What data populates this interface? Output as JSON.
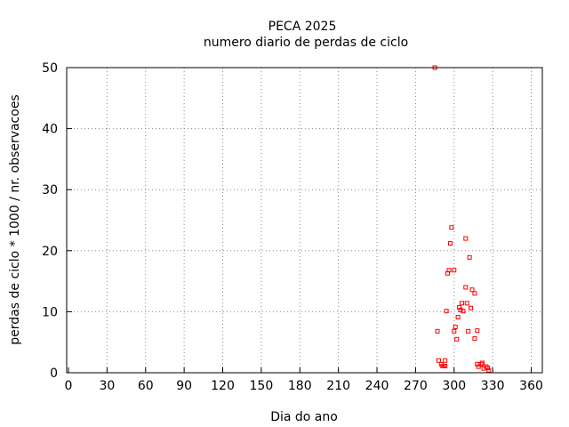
{
  "chart_data": {
    "type": "scatter",
    "title": "PECA 2025",
    "subtitle": "numero diario de perdas de ciclo",
    "xlabel": "Dia do ano",
    "ylabel": "perdas de ciclo * 1000 / nr. observacoes",
    "xlim": [
      0,
      370
    ],
    "ylim": [
      0,
      50
    ],
    "xticks": [
      0,
      30,
      60,
      90,
      120,
      150,
      180,
      210,
      240,
      270,
      300,
      330,
      360
    ],
    "yticks": [
      0,
      10,
      20,
      30,
      40,
      50
    ],
    "grid": true,
    "marker_color": "#ff0000",
    "points": [
      [
        285,
        50
      ],
      [
        298,
        23.8
      ],
      [
        309,
        22.0
      ],
      [
        297,
        21.2
      ],
      [
        312,
        18.9
      ],
      [
        296,
        16.8
      ],
      [
        300,
        16.8
      ],
      [
        295,
        16.3
      ],
      [
        309,
        14.0
      ],
      [
        314,
        13.6
      ],
      [
        316,
        13.0
      ],
      [
        306,
        11.4
      ],
      [
        310,
        11.4
      ],
      [
        304,
        10.7
      ],
      [
        313,
        10.6
      ],
      [
        305,
        10.3
      ],
      [
        294,
        10.1
      ],
      [
        307,
        10.1
      ],
      [
        303,
        9.1
      ],
      [
        301,
        7.5
      ],
      [
        287,
        6.8
      ],
      [
        300,
        6.8
      ],
      [
        311,
        6.8
      ],
      [
        318,
        6.9
      ],
      [
        302,
        5.5
      ],
      [
        316,
        5.6
      ],
      [
        288,
        2.0
      ],
      [
        293,
        2.0
      ],
      [
        290,
        1.4
      ],
      [
        291,
        1.1
      ],
      [
        292,
        1.1
      ],
      [
        293,
        1.1
      ],
      [
        318,
        1.4
      ],
      [
        321,
        1.4
      ],
      [
        322,
        1.6
      ],
      [
        319,
        1.0
      ],
      [
        323,
        0.7
      ],
      [
        325,
        1.0
      ],
      [
        326,
        0.8
      ],
      [
        327,
        0.4
      ]
    ]
  }
}
